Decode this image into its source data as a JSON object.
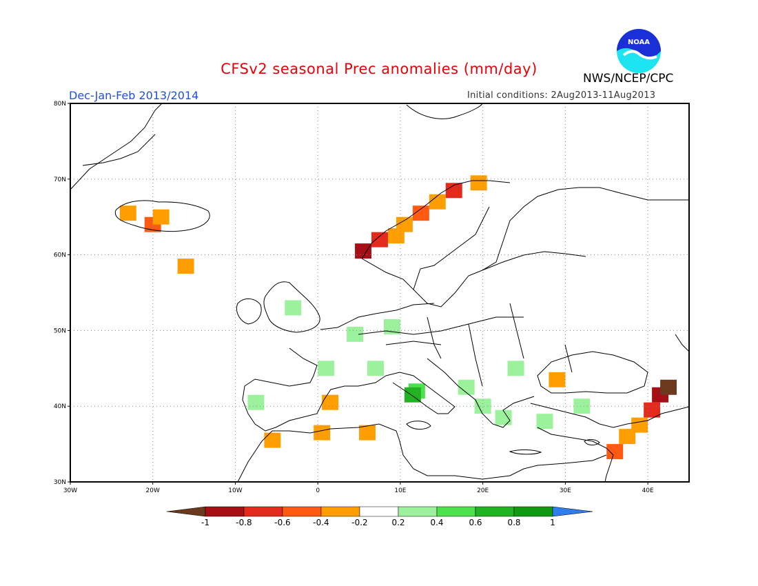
{
  "header": {
    "title": "CFSv2 seasonal Prec anomalies (mm/day)",
    "organization": "NWS/NCEP/CPC",
    "season": "Dec-Jan-Feb 2013/2014",
    "initial_conditions": "Initial conditions: 2Aug2013-11Aug2013",
    "logo_text": "NOAA"
  },
  "map": {
    "lon_range": [
      -30,
      45
    ],
    "lat_range": [
      30,
      80
    ],
    "lon_ticks": [
      "30W",
      "20W",
      "10W",
      "0",
      "10E",
      "20E",
      "30E",
      "40E"
    ],
    "lat_ticks": [
      "30N",
      "40N",
      "50N",
      "60N",
      "70N",
      "80N"
    ],
    "grid": true,
    "units": "mm/day"
  },
  "colorbar": {
    "labels": [
      "-1",
      "-0.8",
      "-0.6",
      "-0.4",
      "-0.2",
      "0.2",
      "0.4",
      "0.6",
      "0.8",
      "1"
    ],
    "colors": [
      "#6b3a1e",
      "#a50f15",
      "#e32a1c",
      "#ff5a12",
      "#ff9e00",
      "#ffffff",
      "#9cf29c",
      "#4fe04f",
      "#22b322",
      "#129912",
      "#2f7dea"
    ]
  },
  "chart_data": {
    "type": "heatmap",
    "title": "CFSv2 seasonal Prec anomalies (mm/day)",
    "units": "mm/day",
    "bins": [
      -1,
      -0.8,
      -0.6,
      -0.4,
      -0.2,
      0.2,
      0.4,
      0.6,
      0.8,
      1
    ],
    "cells": [
      {
        "lon": -23,
        "lat": 65.5,
        "value": -0.3
      },
      {
        "lon": -20,
        "lat": 64.0,
        "value": -0.5
      },
      {
        "lon": -19,
        "lat": 65.0,
        "value": -0.3
      },
      {
        "lon": -16,
        "lat": 58.5,
        "value": -0.3
      },
      {
        "lon": 5.5,
        "lat": 60.5,
        "value": -0.9
      },
      {
        "lon": 7.5,
        "lat": 62.0,
        "value": -0.7
      },
      {
        "lon": 9.5,
        "lat": 62.5,
        "value": -0.3
      },
      {
        "lon": 10.5,
        "lat": 64.0,
        "value": -0.3
      },
      {
        "lon": 12.5,
        "lat": 65.5,
        "value": -0.5
      },
      {
        "lon": 14.5,
        "lat": 67.0,
        "value": -0.3
      },
      {
        "lon": 16.5,
        "lat": 68.5,
        "value": -0.7
      },
      {
        "lon": 19.5,
        "lat": 69.5,
        "value": -0.3
      },
      {
        "lon": -3.0,
        "lat": 53.0,
        "value": 0.3
      },
      {
        "lon": 4.5,
        "lat": 49.5,
        "value": 0.3
      },
      {
        "lon": 9.0,
        "lat": 50.5,
        "value": 0.3
      },
      {
        "lon": 1.0,
        "lat": 45.0,
        "value": 0.3
      },
      {
        "lon": 7.0,
        "lat": 45.0,
        "value": 0.3
      },
      {
        "lon": 12.0,
        "lat": 42.0,
        "value": 0.5
      },
      {
        "lon": 11.5,
        "lat": 41.5,
        "value": 0.7
      },
      {
        "lon": 18.0,
        "lat": 42.5,
        "value": 0.3
      },
      {
        "lon": 20.0,
        "lat": 40.0,
        "value": 0.3
      },
      {
        "lon": 22.5,
        "lat": 38.5,
        "value": 0.3
      },
      {
        "lon": 24.0,
        "lat": 45.0,
        "value": 0.3
      },
      {
        "lon": -7.5,
        "lat": 40.5,
        "value": 0.3
      },
      {
        "lon": 27.5,
        "lat": 38.0,
        "value": 0.3
      },
      {
        "lon": 32.0,
        "lat": 40.0,
        "value": 0.3
      },
      {
        "lon": 29.0,
        "lat": 43.5,
        "value": -0.3
      },
      {
        "lon": 1.5,
        "lat": 40.5,
        "value": -0.3
      },
      {
        "lon": -5.5,
        "lat": 35.5,
        "value": -0.3
      },
      {
        "lon": 0.5,
        "lat": 36.5,
        "value": -0.3
      },
      {
        "lon": 6.0,
        "lat": 36.5,
        "value": -0.3
      },
      {
        "lon": 40.5,
        "lat": 39.5,
        "value": -0.7
      },
      {
        "lon": 41.5,
        "lat": 41.5,
        "value": -0.9
      },
      {
        "lon": 42.5,
        "lat": 42.5,
        "value": -1.0
      },
      {
        "lon": 39.0,
        "lat": 37.5,
        "value": -0.3
      },
      {
        "lon": 37.5,
        "lat": 36.0,
        "value": -0.3
      },
      {
        "lon": 36.0,
        "lat": 34.0,
        "value": -0.5
      }
    ]
  }
}
